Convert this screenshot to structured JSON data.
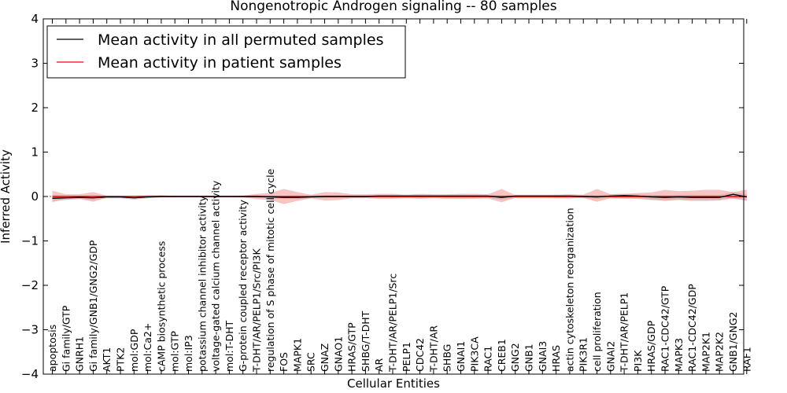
{
  "chart_data": {
    "type": "line",
    "title": "Nongenotropic Androgen signaling -- 80 samples",
    "xlabel": "Cellular Entities",
    "ylabel": "Inferred Activity",
    "ylim": [
      -4,
      4
    ],
    "yticks": [
      "−4",
      "−3",
      "−2",
      "−1",
      "0",
      "1",
      "2",
      "3",
      "4"
    ],
    "yticks_values": [
      -4,
      -3,
      -2,
      -1,
      0,
      1,
      2,
      3,
      4
    ],
    "legend_position": "top-left",
    "categories": [
      "apoptosis",
      "Gi family/GTP",
      "GNRH1",
      "Gi family/GNB1/GNG2/GDP",
      "AKT1",
      "PTK2",
      "mol:GDP",
      "mol:Ca2+",
      "cAMP biosynthetic process",
      "mol:GTP",
      "mol:IP3",
      "potassium channel inhibitor activity",
      "voltage-gated calcium channel activity",
      "mol:T-DHT",
      "G-protein coupled receptor activity",
      "T-DHT/AR/PELP1/Src/PI3K",
      "regulation of S phase of mitotic cell cycle",
      "FOS",
      "MAPK1",
      "SRC",
      "GNAZ",
      "GNAO1",
      "HRAS/GTP",
      "SHBG/T-DHT",
      "AR",
      "T-DHT/AR/PELP1/Src",
      "PELP1",
      "CDC42",
      "T-DHT/AR",
      "SHBG",
      "GNAI1",
      "PIK3CA",
      "RAC1",
      "CREB1",
      "GNG2",
      "GNB1",
      "GNAI3",
      "HRAS",
      "actin cytoskeleton reorganization",
      "PIK3R1",
      "cell proliferation",
      "GNAI2",
      "T-DHT/AR/PELP1",
      "PI3K",
      "HRAS/GDP",
      "RAC1-CDC42/GTP",
      "MAPK3",
      "RAC1-CDC42/GDP",
      "MAP2K1",
      "MAP2K2",
      "GNB1/GNG2",
      "RAF1"
    ],
    "series": [
      {
        "name": "Mean activity in all permuted samples",
        "color": "#000000",
        "band_color": "#b0b0b0",
        "values": [
          -0.04,
          -0.03,
          -0.02,
          -0.03,
          -0.01,
          -0.01,
          -0.03,
          -0.01,
          0,
          0,
          0,
          0,
          0,
          0,
          0,
          0,
          -0.01,
          -0.02,
          -0.02,
          -0.01,
          0,
          0,
          0,
          0,
          0.01,
          0.01,
          0.01,
          0.01,
          0.01,
          0.01,
          0.01,
          0.01,
          0.01,
          -0.02,
          0.01,
          0.01,
          0.01,
          0.01,
          0.01,
          0,
          -0.01,
          0.01,
          0.02,
          0.01,
          -0.01,
          -0.02,
          -0.01,
          -0.02,
          -0.02,
          -0.02,
          0.05,
          -0.01
        ],
        "lower": [
          -0.1,
          -0.08,
          -0.06,
          -0.08,
          -0.04,
          -0.04,
          -0.07,
          -0.04,
          -0.02,
          -0.02,
          -0.02,
          -0.02,
          -0.02,
          -0.02,
          -0.02,
          -0.03,
          -0.04,
          -0.05,
          -0.06,
          -0.04,
          -0.04,
          -0.03,
          -0.03,
          -0.03,
          -0.03,
          -0.03,
          -0.03,
          -0.03,
          -0.03,
          -0.03,
          -0.04,
          -0.04,
          -0.04,
          -0.07,
          -0.04,
          -0.04,
          -0.04,
          -0.04,
          -0.04,
          -0.04,
          -0.06,
          -0.04,
          -0.04,
          -0.05,
          -0.08,
          -0.09,
          -0.08,
          -0.1,
          -0.1,
          -0.09,
          -0.03,
          -0.1
        ],
        "upper": [
          0.03,
          0.02,
          0.02,
          0.02,
          0.02,
          0.02,
          0.01,
          0.02,
          0.02,
          0.02,
          0.02,
          0.02,
          0.02,
          0.02,
          0.02,
          0.03,
          0.02,
          0.02,
          0.02,
          0.02,
          0.03,
          0.03,
          0.03,
          0.03,
          0.04,
          0.04,
          0.04,
          0.04,
          0.04,
          0.04,
          0.04,
          0.04,
          0.04,
          0.03,
          0.04,
          0.04,
          0.04,
          0.04,
          0.04,
          0.04,
          0.03,
          0.05,
          0.06,
          0.05,
          0.04,
          0.03,
          0.04,
          0.04,
          0.04,
          0.04,
          0.1,
          0.05
        ]
      },
      {
        "name": "Mean activity in patient samples",
        "color": "#ff0000",
        "band_color": "#f3a3a3",
        "values": [
          0,
          0,
          0,
          0,
          0,
          0,
          0,
          0,
          0,
          0,
          0,
          0,
          0,
          0,
          0,
          0,
          0,
          0,
          0,
          0,
          0,
          0,
          0,
          0,
          0,
          0,
          0,
          0,
          0,
          0,
          0,
          0,
          0,
          0,
          0,
          0,
          0,
          0,
          0,
          0,
          0,
          0,
          0,
          0,
          0,
          0,
          0,
          0,
          0,
          0,
          0,
          0
        ],
        "lower": [
          -0.13,
          -0.05,
          -0.05,
          -0.12,
          -0.02,
          -0.02,
          -0.02,
          -0.02,
          -0.02,
          -0.01,
          -0.01,
          -0.01,
          -0.01,
          -0.01,
          -0.02,
          -0.06,
          -0.08,
          -0.17,
          -0.1,
          -0.04,
          -0.09,
          -0.08,
          -0.04,
          -0.04,
          -0.05,
          -0.05,
          -0.04,
          -0.05,
          -0.04,
          -0.05,
          -0.05,
          -0.05,
          -0.04,
          -0.13,
          -0.03,
          -0.03,
          -0.03,
          -0.04,
          -0.04,
          -0.03,
          -0.12,
          -0.04,
          -0.05,
          -0.05,
          -0.07,
          -0.1,
          -0.07,
          -0.08,
          -0.08,
          -0.08,
          -0.05,
          -0.09
        ],
        "upper": [
          0.13,
          0.05,
          0.05,
          0.1,
          0.02,
          0.02,
          0.02,
          0.03,
          0.03,
          0.01,
          0.01,
          0.01,
          0.01,
          0.01,
          0.02,
          0.06,
          0.08,
          0.17,
          0.1,
          0.04,
          0.1,
          0.09,
          0.05,
          0.05,
          0.06,
          0.06,
          0.04,
          0.06,
          0.05,
          0.05,
          0.06,
          0.06,
          0.05,
          0.17,
          0.03,
          0.03,
          0.03,
          0.04,
          0.05,
          0.04,
          0.17,
          0.05,
          0.06,
          0.08,
          0.09,
          0.15,
          0.12,
          0.13,
          0.15,
          0.15,
          0.1,
          0.15
        ]
      }
    ]
  }
}
